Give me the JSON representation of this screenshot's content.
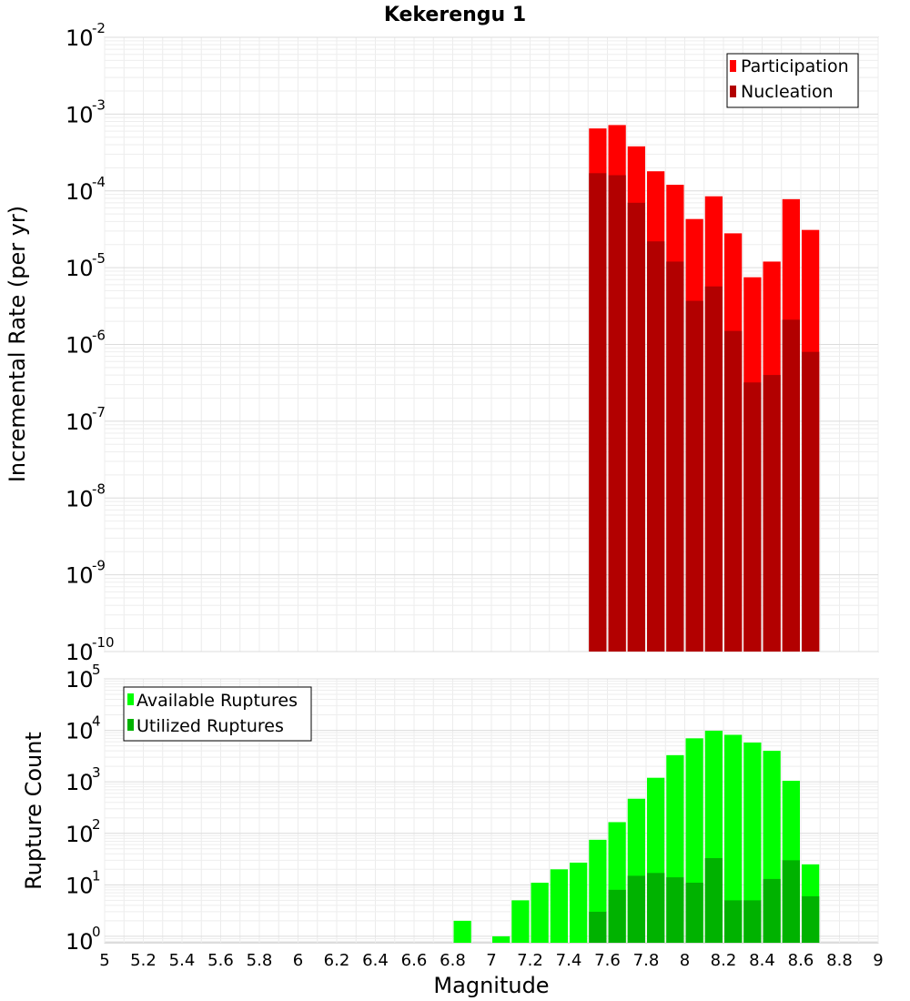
{
  "chart_data": [
    {
      "type": "bar",
      "title": "Kekerengu 1",
      "xlabel": "",
      "ylabel": "Incremental Rate (per yr)",
      "xlim": [
        5,
        9
      ],
      "ylim": [
        1e-10,
        0.01
      ],
      "yscale": "log",
      "grid": true,
      "legend_position": "top-right",
      "bin_width": 0.1,
      "x": [
        7.55,
        7.65,
        7.75,
        7.85,
        7.95,
        8.05,
        8.15,
        8.25,
        8.35,
        8.45,
        8.55,
        8.65
      ],
      "series": [
        {
          "name": "Participation",
          "color": "#ff0000",
          "values": [
            0.00065,
            0.00072,
            0.00038,
            0.00018,
            0.00012,
            4.3e-05,
            8.5e-05,
            2.8e-05,
            7.5e-06,
            1.2e-05,
            7.8e-05,
            3.1e-05
          ]
        },
        {
          "name": "Nucleation",
          "color": "#b20000",
          "values": [
            0.00017,
            0.00016,
            7e-05,
            2.2e-05,
            1.2e-05,
            3.7e-06,
            5.7e-06,
            1.5e-06,
            3.2e-07,
            4e-07,
            2.1e-06,
            8e-07
          ]
        }
      ],
      "y_ticks": [
        {
          "base": "10",
          "exp": "-10"
        },
        {
          "base": "10",
          "exp": "-9"
        },
        {
          "base": "10",
          "exp": "-8"
        },
        {
          "base": "10",
          "exp": "-7"
        },
        {
          "base": "10",
          "exp": "-6"
        },
        {
          "base": "10",
          "exp": "-5"
        },
        {
          "base": "10",
          "exp": "-4"
        },
        {
          "base": "10",
          "exp": "-3"
        },
        {
          "base": "10",
          "exp": "-2"
        }
      ]
    },
    {
      "type": "bar",
      "title": "",
      "xlabel": "Magnitude",
      "ylabel": "Rupture Count",
      "xlim": [
        5,
        9
      ],
      "ylim": [
        0.75,
        100000
      ],
      "yscale": "log",
      "grid": true,
      "legend_position": "top-left",
      "bin_width": 0.1,
      "x_ticks": [
        "5",
        "5.2",
        "5.4",
        "5.6",
        "5.8",
        "6",
        "6.2",
        "6.4",
        "6.6",
        "6.8",
        "7",
        "7.2",
        "7.4",
        "7.6",
        "7.8",
        "8",
        "8.2",
        "8.4",
        "8.6",
        "8.8",
        "9"
      ],
      "series": [
        {
          "name": "Available Ruptures",
          "color": "#00ff00",
          "x": [
            6.85,
            7.05,
            7.15,
            7.25,
            7.35,
            7.45,
            7.55,
            7.65,
            7.75,
            7.85,
            7.95,
            8.05,
            8.15,
            8.25,
            8.35,
            8.45,
            8.55,
            8.65
          ],
          "values": [
            2,
            1,
            5,
            11,
            20,
            27,
            75,
            165,
            470,
            1200,
            3300,
            7000,
            9800,
            8200,
            5800,
            4000,
            1050,
            25
          ]
        },
        {
          "name": "Utilized Ruptures",
          "color": "#00b200",
          "x": [
            7.55,
            7.65,
            7.75,
            7.85,
            7.95,
            8.05,
            8.15,
            8.25,
            8.35,
            8.45,
            8.55,
            8.65
          ],
          "values": [
            3,
            8,
            15,
            17,
            14,
            11,
            33,
            5,
            5,
            13,
            30,
            6
          ]
        }
      ],
      "y_ticks": [
        {
          "base": "10",
          "exp": "0"
        },
        {
          "base": "10",
          "exp": "1"
        },
        {
          "base": "10",
          "exp": "2"
        },
        {
          "base": "10",
          "exp": "3"
        },
        {
          "base": "10",
          "exp": "4"
        },
        {
          "base": "10",
          "exp": "5"
        }
      ]
    }
  ]
}
